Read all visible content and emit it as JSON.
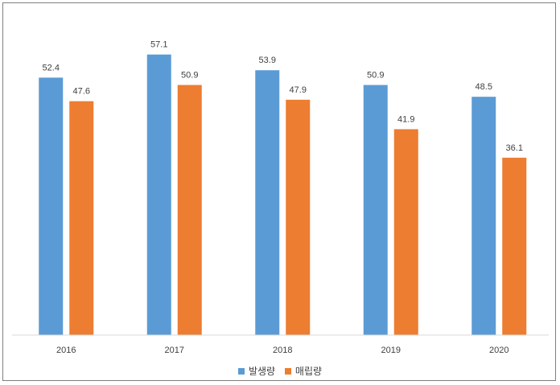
{
  "chart_data": {
    "type": "bar",
    "title": "",
    "xlabel": "",
    "ylabel": "",
    "ylim": [
      0,
      60
    ],
    "grid": false,
    "categories": [
      "2016",
      "2017",
      "2018",
      "2019",
      "2020"
    ],
    "series": [
      {
        "name": "발생량",
        "color": "#5b9bd5",
        "values": [
          52.4,
          57.1,
          53.9,
          50.9,
          48.5
        ]
      },
      {
        "name": "매립량",
        "color": "#ed7d31",
        "values": [
          47.6,
          50.9,
          47.9,
          41.9,
          36.1
        ]
      }
    ],
    "value_labels": [
      [
        "52.4",
        "57.1",
        "53.9",
        "50.9",
        "48.5"
      ],
      [
        "47.6",
        "50.9",
        "47.9",
        "41.9",
        "36.1"
      ]
    ],
    "legend_position": "bottom"
  }
}
